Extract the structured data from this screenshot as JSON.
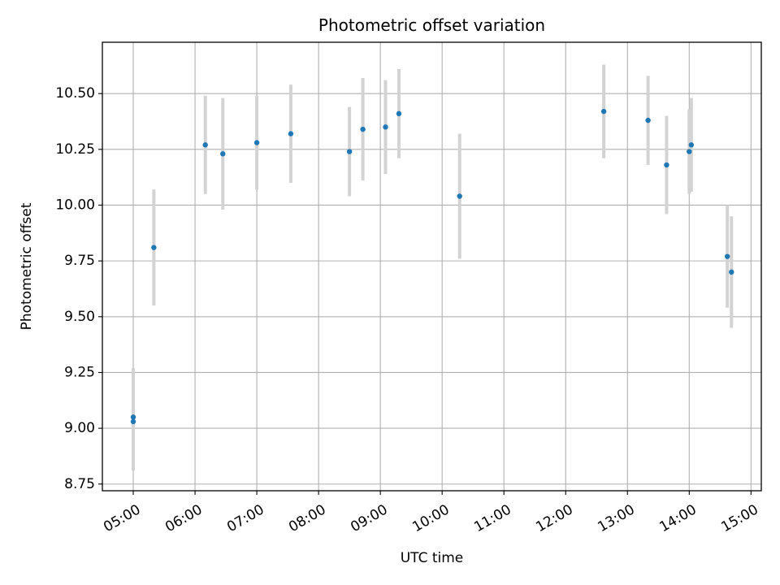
{
  "chart_data": {
    "type": "scatter",
    "title": "Photometric offset variation",
    "xlabel": "UTC time",
    "ylabel": "Photometric offset",
    "x_ticks": [
      "05:00",
      "06:00",
      "07:00",
      "08:00",
      "09:00",
      "10:00",
      "11:00",
      "12:00",
      "13:00",
      "14:00",
      "15:00"
    ],
    "y_ticks": [
      "8.75",
      "9.00",
      "9.25",
      "9.50",
      "9.75",
      "10.00",
      "10.25",
      "10.50"
    ],
    "xlim": [
      "04:30",
      "15:10"
    ],
    "ylim": [
      8.72,
      10.73
    ],
    "grid": true,
    "point_color": "#1f77b4",
    "errorbar_color": "#d3d3d3",
    "points": [
      {
        "x": "05:00",
        "y": 9.05,
        "err": 0.22
      },
      {
        "x": "05:00",
        "y": 9.03,
        "err": 0.22
      },
      {
        "x": "05:20",
        "y": 9.81,
        "err": 0.26
      },
      {
        "x": "06:10",
        "y": 10.27,
        "err": 0.22
      },
      {
        "x": "06:27",
        "y": 10.23,
        "err": 0.25
      },
      {
        "x": "07:00",
        "y": 10.28,
        "err": 0.21
      },
      {
        "x": "07:33",
        "y": 10.32,
        "err": 0.22
      },
      {
        "x": "08:30",
        "y": 10.24,
        "err": 0.2
      },
      {
        "x": "08:43",
        "y": 10.34,
        "err": 0.23
      },
      {
        "x": "09:05",
        "y": 10.35,
        "err": 0.21
      },
      {
        "x": "09:18",
        "y": 10.41,
        "err": 0.2
      },
      {
        "x": "10:17",
        "y": 10.04,
        "err": 0.28
      },
      {
        "x": "12:37",
        "y": 10.42,
        "err": 0.21
      },
      {
        "x": "13:20",
        "y": 10.38,
        "err": 0.2
      },
      {
        "x": "13:38",
        "y": 10.18,
        "err": 0.22
      },
      {
        "x": "14:00",
        "y": 10.24,
        "err": 0.19
      },
      {
        "x": "14:02",
        "y": 10.27,
        "err": 0.21
      },
      {
        "x": "14:37",
        "y": 9.77,
        "err": 0.23
      },
      {
        "x": "14:41",
        "y": 9.7,
        "err": 0.25
      }
    ]
  }
}
